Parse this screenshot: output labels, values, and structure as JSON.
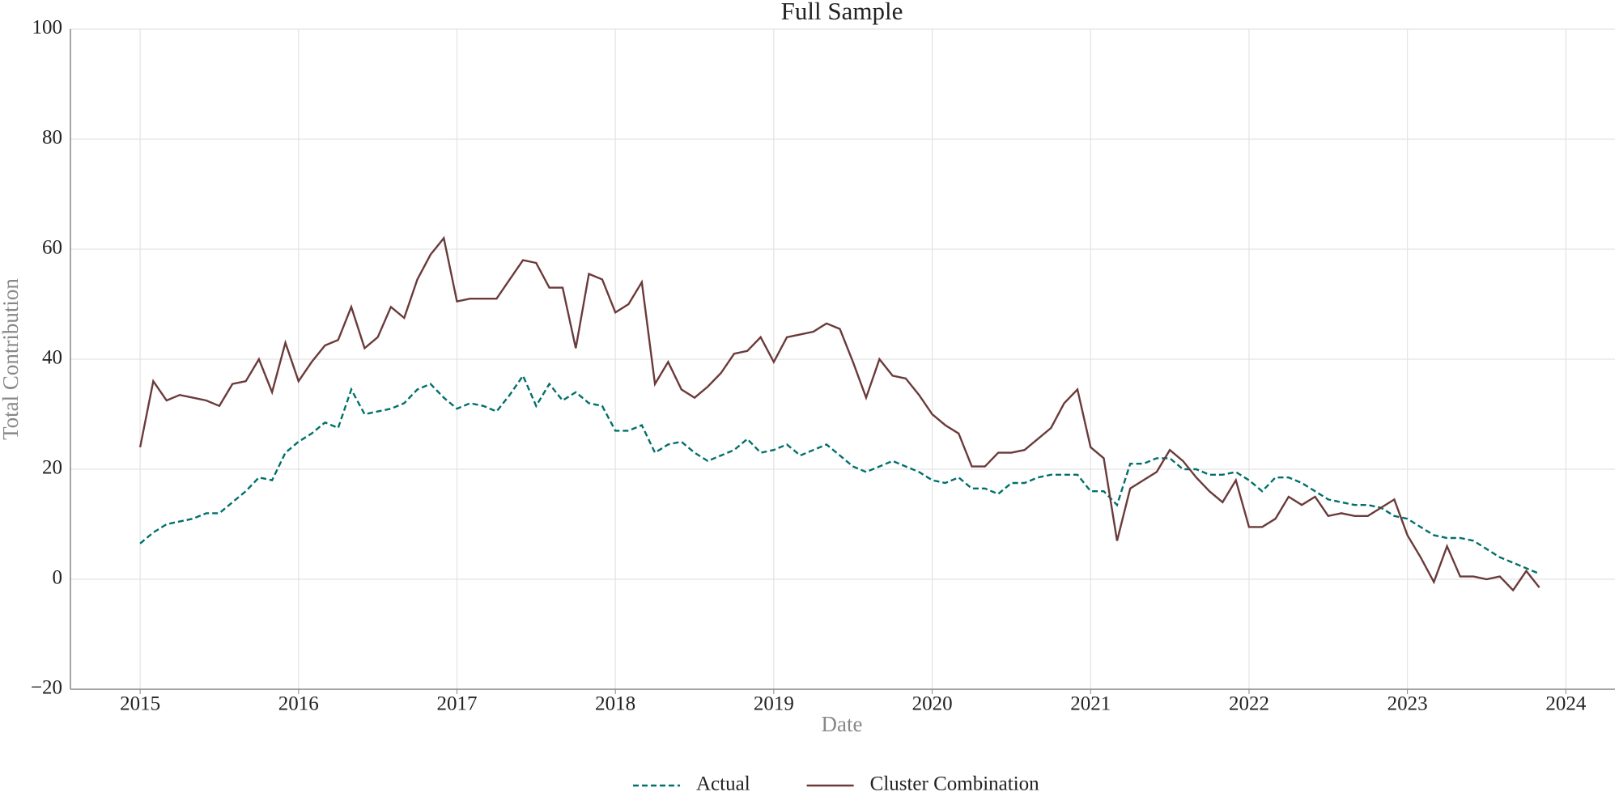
{
  "chart_data": {
    "type": "line",
    "title": "Full Sample",
    "xlabel": "Date",
    "ylabel": "Total Contribution",
    "x": [
      2015,
      2015.083,
      2015.167,
      2015.25,
      2015.333,
      2015.417,
      2015.5,
      2015.583,
      2015.667,
      2015.75,
      2015.833,
      2015.917,
      2016,
      2016.083,
      2016.167,
      2016.25,
      2016.333,
      2016.417,
      2016.5,
      2016.583,
      2016.667,
      2016.75,
      2016.833,
      2016.917,
      2017,
      2017.083,
      2017.167,
      2017.25,
      2017.333,
      2017.417,
      2017.5,
      2017.583,
      2017.667,
      2017.75,
      2017.833,
      2017.917,
      2018,
      2018.083,
      2018.167,
      2018.25,
      2018.333,
      2018.417,
      2018.5,
      2018.583,
      2018.667,
      2018.75,
      2018.833,
      2018.917,
      2019,
      2019.083,
      2019.167,
      2019.25,
      2019.333,
      2019.417,
      2019.5,
      2019.583,
      2019.667,
      2019.75,
      2019.833,
      2019.917,
      2020,
      2020.083,
      2020.167,
      2020.25,
      2020.333,
      2020.417,
      2020.5,
      2020.583,
      2020.667,
      2020.75,
      2020.833,
      2020.917,
      2021,
      2021.083,
      2021.167,
      2021.25,
      2021.333,
      2021.417,
      2021.5,
      2021.583,
      2021.667,
      2021.75,
      2021.833,
      2021.917,
      2022,
      2022.083,
      2022.167,
      2022.25,
      2022.333,
      2022.417,
      2022.5,
      2022.583,
      2022.667,
      2022.75,
      2022.833,
      2022.917,
      2023,
      2023.083,
      2023.167,
      2023.25,
      2023.333,
      2023.417,
      2023.5,
      2023.583,
      2023.667,
      2023.75,
      2023.833
    ],
    "series": [
      {
        "name": "Actual",
        "color": "#00706b",
        "dash": true,
        "values": [
          6.5,
          8.5,
          10,
          10.5,
          11,
          12,
          12,
          14,
          16,
          18.5,
          18,
          23,
          25,
          26.5,
          28.5,
          27.5,
          34.5,
          30,
          30.5,
          31,
          32,
          34.5,
          35.5,
          33,
          31,
          32,
          31.5,
          30.5,
          33.5,
          37,
          31.5,
          35.5,
          32.5,
          34,
          32,
          31.5,
          27,
          27,
          28,
          23,
          24.5,
          25,
          23,
          21.5,
          22.5,
          23.5,
          25.5,
          23,
          23.5,
          24.5,
          22.5,
          23.5,
          24.5,
          22.5,
          20.5,
          19.5,
          20.5,
          21.5,
          20.5,
          19.5,
          18,
          17.5,
          18.5,
          16.5,
          16.5,
          15.5,
          17.5,
          17.5,
          18.5,
          19,
          19,
          19,
          16,
          16,
          13.5,
          21,
          21,
          22,
          22,
          20,
          20,
          19,
          19,
          19.5,
          18,
          16,
          18.5,
          18.5,
          17.5,
          16,
          14.5,
          14,
          13.5,
          13.5,
          13,
          11.5,
          11,
          9.5,
          8,
          7.5,
          7.5,
          7,
          5.5,
          4,
          3,
          2,
          1
        ]
      },
      {
        "name": "Cluster Combination",
        "color": "#6b3a3a",
        "dash": false,
        "values": [
          24,
          36,
          32.5,
          33.5,
          33,
          32.5,
          31.5,
          35.5,
          36,
          40,
          34,
          43,
          36,
          39.5,
          42.5,
          43.5,
          49.5,
          42,
          44,
          49.5,
          47.5,
          54.5,
          59,
          62,
          50.5,
          51,
          51,
          51,
          54.5,
          58,
          57.5,
          53,
          53,
          42,
          55.5,
          54.5,
          48.5,
          50,
          54,
          35.5,
          39.5,
          34.5,
          33,
          35,
          37.5,
          41,
          41.5,
          44,
          39.5,
          44,
          44.5,
          45,
          46.5,
          45.5,
          39.5,
          33,
          40,
          37,
          36.5,
          33.5,
          30,
          28,
          26.5,
          20.5,
          20.5,
          23,
          23,
          23.5,
          25.5,
          27.5,
          32,
          34.5,
          24,
          22,
          7,
          16.5,
          18,
          19.5,
          23.5,
          21.5,
          18.5,
          16,
          14,
          18,
          9.5,
          9.5,
          11,
          15,
          13.5,
          15,
          11.5,
          12,
          11.5,
          11.5,
          13,
          14.5,
          8,
          4,
          -0.5,
          6,
          0.5,
          0.5,
          0,
          0.5,
          -2,
          1.5,
          -1.5
        ]
      }
    ],
    "xlim": [
      2014.56,
      2024.31
    ],
    "xticks": [
      2015,
      2016,
      2017,
      2018,
      2019,
      2020,
      2021,
      2022,
      2023,
      2024
    ],
    "ylim": [
      -20,
      100
    ],
    "yticks": [
      {
        "value": -20,
        "label": "−20"
      },
      0,
      20,
      40,
      60,
      80,
      100
    ],
    "grid": true,
    "legend": "bottom"
  }
}
